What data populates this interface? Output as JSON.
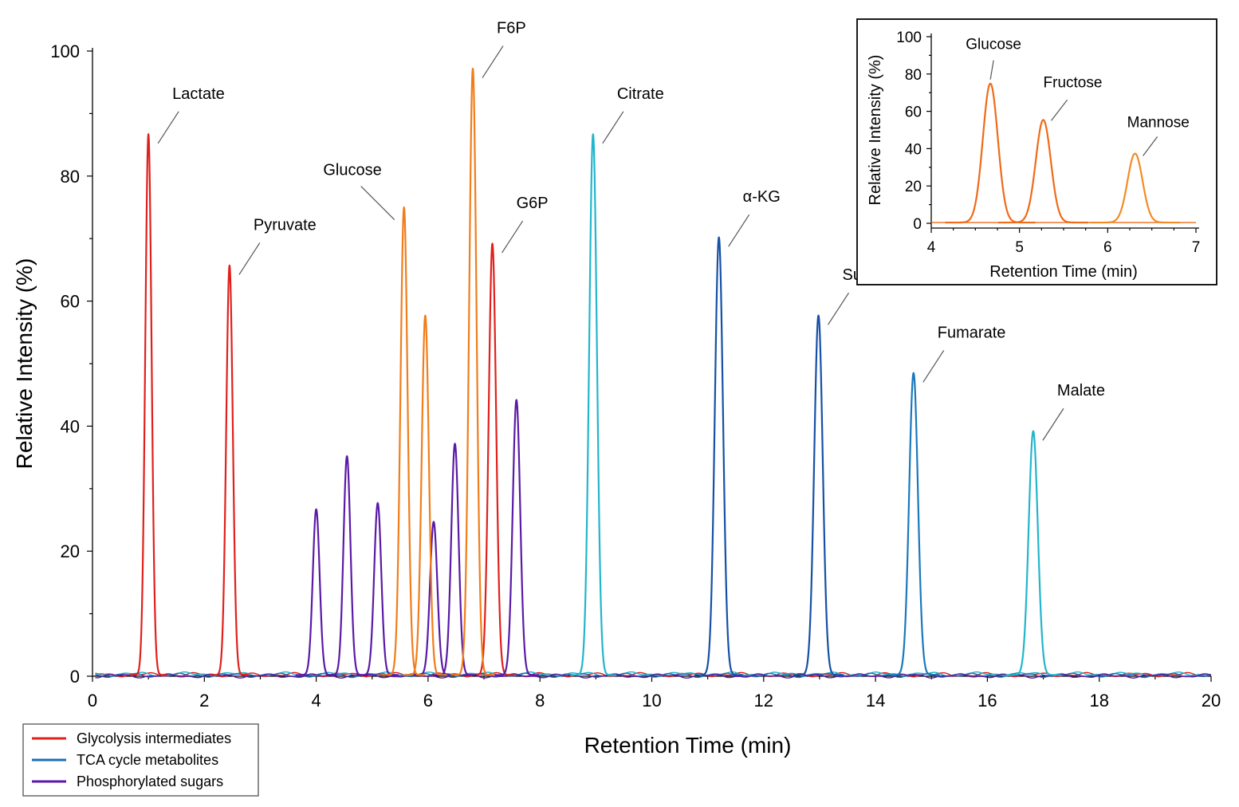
{
  "chart_data": [
    {
      "type": "line",
      "title": "",
      "xlabel": "Retention Time (min)",
      "ylabel": "Relative Intensity (%)",
      "xlim": [
        0,
        20
      ],
      "ylim": [
        0,
        100
      ],
      "xticks": [
        0,
        2,
        4,
        6,
        8,
        10,
        12,
        14,
        16,
        18,
        20
      ],
      "yticks": [
        0,
        20,
        40,
        60,
        80,
        100
      ],
      "grid": false,
      "legend": "bottom-left",
      "series": [
        {
          "name": "Glycolysis intermediates",
          "color": "#e0201c",
          "peaks": [
            {
              "rt": 1.0,
              "height": 86.5,
              "label": "Lactate"
            },
            {
              "rt": 2.45,
              "height": 65.5,
              "label": "Pyruvate"
            },
            {
              "rt": 7.15,
              "height": 69.0,
              "label": "G6P"
            }
          ]
        },
        {
          "name": "TCA cycle metabolites",
          "color": "#1f6db5",
          "peaks": [
            {
              "rt": 8.95,
              "height": 86.5,
              "label": "Citrate",
              "color": "#22b5cc"
            },
            {
              "rt": 11.2,
              "height": 70.0,
              "label": "α-KG",
              "color": "#1550a6"
            },
            {
              "rt": 12.98,
              "height": 57.5,
              "label": "Succinate",
              "color": "#1550a6"
            },
            {
              "rt": 14.68,
              "height": 48.3,
              "label": "Fumarate",
              "color": "#1a78bc"
            },
            {
              "rt": 16.82,
              "height": 39.0,
              "label": "Malate",
              "color": "#22b5cc"
            }
          ]
        },
        {
          "name": "Phosphorylated sugars",
          "color": "#5a1aa6",
          "peaks": [
            {
              "rt": 4.0,
              "height": 26.5
            },
            {
              "rt": 4.55,
              "height": 35.0
            },
            {
              "rt": 5.1,
              "height": 27.5
            },
            {
              "rt": 6.1,
              "height": 24.5
            },
            {
              "rt": 6.48,
              "height": 37.0
            },
            {
              "rt": 7.58,
              "height": 44.0
            }
          ]
        },
        {
          "color": "#f07d1a",
          "peaks": [
            {
              "rt": 5.57,
              "height": 74.8,
              "label": "Glucose"
            },
            {
              "rt": 5.95,
              "height": 57.5
            },
            {
              "rt": 6.8,
              "height": 97.0,
              "label": "F6P"
            }
          ]
        }
      ]
    },
    {
      "type": "line",
      "title": "",
      "xlabel": "Retention Time (min)",
      "ylabel": "Relative Intensity (%)",
      "xlim": [
        4,
        7
      ],
      "ylim": [
        0,
        100
      ],
      "xticks": [
        4,
        5,
        6,
        7
      ],
      "yticks": [
        0,
        20,
        40,
        60,
        80,
        100
      ],
      "grid": false,
      "series": [
        {
          "color": "#f06a18",
          "peaks": [
            {
              "rt": 4.67,
              "height": 74.5,
              "label": "Glucose"
            },
            {
              "rt": 5.27,
              "height": 55.0,
              "label": "Fructose"
            },
            {
              "rt": 6.31,
              "height": 37.0,
              "label": "Mannose",
              "color": "#f58a24"
            }
          ]
        }
      ]
    }
  ]
}
